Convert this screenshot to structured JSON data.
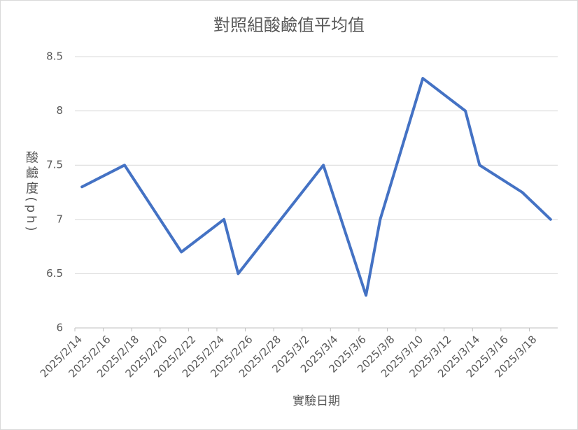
{
  "chart_data": {
    "type": "line",
    "title": "對照組酸鹼值平均值",
    "x_label": "實驗日期",
    "y_label": "酸鹼度(ph)",
    "x": [
      "2025/2/14",
      "2025/2/17",
      "2025/2/21",
      "2025/2/24",
      "2025/2/25",
      "2025/3/3",
      "2025/3/6",
      "2025/3/7",
      "2025/3/10",
      "2025/3/13",
      "2025/3/14",
      "2025/3/17",
      "2025/3/19"
    ],
    "series": [
      {
        "name": "對照組",
        "color": "#4472c4",
        "values": [
          7.3,
          7.5,
          6.7,
          7.0,
          6.5,
          7.5,
          6.3,
          7.0,
          8.3,
          8.0,
          7.5,
          7.25,
          7.0
        ]
      }
    ],
    "xlim": [
      "2025/2/14",
      "2025/3/19"
    ],
    "xticks": [
      "2025/2/14",
      "2025/2/16",
      "2025/2/18",
      "2025/2/20",
      "2025/2/22",
      "2025/2/24",
      "2025/2/26",
      "2025/2/28",
      "2025/3/2",
      "2025/3/4",
      "2025/3/6",
      "2025/3/8",
      "2025/3/10",
      "2025/3/12",
      "2025/3/14",
      "2025/3/16",
      "2025/3/18"
    ],
    "ylim": [
      6,
      8.5
    ],
    "yticks": [
      6,
      6.5,
      7,
      7.5,
      8,
      8.5
    ],
    "grid": true
  }
}
